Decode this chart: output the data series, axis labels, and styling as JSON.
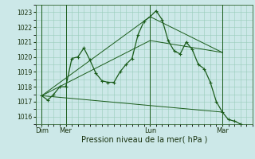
{
  "background_color": "#cce8e8",
  "grid_color": "#99ccbb",
  "line_color": "#1a5c1a",
  "xlabel": "Pression niveau de la mer( hPa )",
  "ylim": [
    1015.5,
    1023.5
  ],
  "yticks": [
    1016,
    1017,
    1018,
    1019,
    1020,
    1021,
    1022,
    1023
  ],
  "xlim": [
    0,
    216
  ],
  "day_labels": [
    "Dim",
    "Mer",
    "Lun",
    "Mar"
  ],
  "day_positions": [
    6,
    30,
    114,
    186
  ],
  "vline_positions": [
    6,
    30,
    114,
    186
  ],
  "series_main": {
    "x": [
      6,
      12,
      18,
      24,
      30,
      36,
      42,
      48,
      54,
      60,
      66,
      72,
      78,
      84,
      90,
      96,
      102,
      108,
      114,
      120,
      126,
      132,
      138,
      144,
      150,
      156,
      162,
      168,
      174,
      180,
      186,
      192,
      198,
      204
    ],
    "y": [
      1017.4,
      1017.1,
      1017.5,
      1018.0,
      1018.0,
      1019.9,
      1020.0,
      1020.6,
      1019.8,
      1018.9,
      1018.4,
      1018.3,
      1018.3,
      1019.0,
      1019.5,
      1019.9,
      1021.5,
      1022.4,
      1022.7,
      1023.1,
      1022.5,
      1021.1,
      1020.4,
      1020.2,
      1021.0,
      1020.5,
      1019.5,
      1019.2,
      1018.3,
      1017.0,
      1016.3,
      1015.8,
      1015.7,
      1015.5
    ]
  },
  "line2": {
    "x": [
      6,
      114,
      186
    ],
    "y": [
      1017.4,
      1022.7,
      1020.3
    ]
  },
  "line3": {
    "x": [
      6,
      114,
      186
    ],
    "y": [
      1017.4,
      1021.1,
      1020.3
    ]
  },
  "line4": {
    "x": [
      6,
      186
    ],
    "y": [
      1017.4,
      1016.3
    ]
  }
}
